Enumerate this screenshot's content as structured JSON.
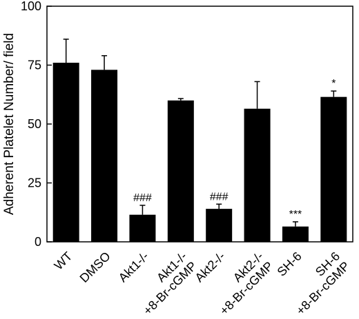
{
  "chart_data": {
    "type": "bar",
    "title": "",
    "xlabel": "",
    "ylabel": "Adherent Platelet Number/ field",
    "ylim": [
      0,
      100
    ],
    "yticks": [
      "0",
      "25",
      "50",
      "75",
      "100"
    ],
    "categories": [
      [
        "WT"
      ],
      [
        "DMSO"
      ],
      [
        "Akt1-/-"
      ],
      [
        "Akt1-/-",
        "+8-Br-cGMP"
      ],
      [
        "Akt2-/-"
      ],
      [
        "Akt2-/-",
        "+8-Br-cGMP"
      ],
      [
        "SH-6"
      ],
      [
        "SH-6",
        "+8-Br-cGMP"
      ]
    ],
    "values": [
      76,
      73,
      11.5,
      60,
      14,
      56.5,
      6.5,
      61.5
    ],
    "errors": [
      10,
      6,
      4,
      0.8,
      2,
      11.5,
      2,
      2.5
    ],
    "annotations": [
      "",
      "",
      "###",
      "",
      "###",
      "",
      "***",
      "*"
    ],
    "bar_color": "#000000",
    "grid": false,
    "legend": "none"
  }
}
